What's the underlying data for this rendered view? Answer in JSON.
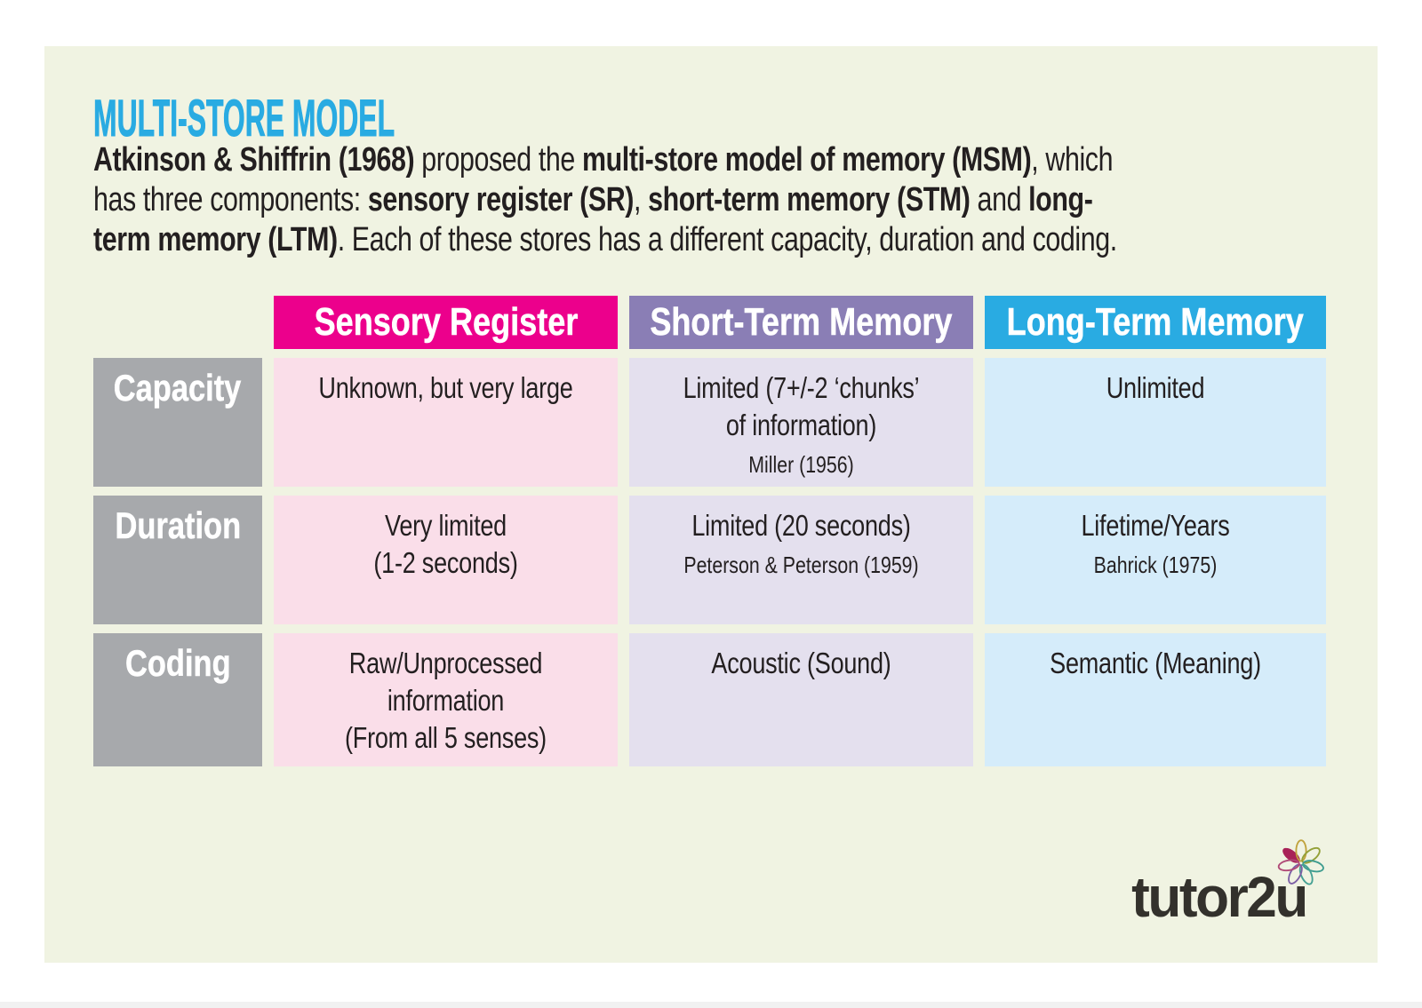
{
  "header": {
    "title": "MULTI-STORE MODEL",
    "title_color": "#29ABE2"
  },
  "intro": {
    "lines": [
      [
        {
          "t": "Atkinson & Shiffrin (1968)",
          "b": true
        },
        {
          "t": " proposed the ",
          "b": false
        },
        {
          "t": "multi-store model of memory (MSM)",
          "b": true
        },
        {
          "t": ", which",
          "b": false
        }
      ],
      [
        {
          "t": "has three components: ",
          "b": false
        },
        {
          "t": "sensory register (SR)",
          "b": true
        },
        {
          "t": ", ",
          "b": false
        },
        {
          "t": "short-term memory (STM)",
          "b": true
        },
        {
          "t": " and ",
          "b": false
        },
        {
          "t": "long-",
          "b": true
        }
      ],
      [
        {
          "t": "term memory (LTM)",
          "b": true
        },
        {
          "t": ". Each of these stores has a different capacity, duration and coding.",
          "b": false
        }
      ]
    ]
  },
  "table": {
    "row_header_color": "#A7A9AC",
    "columns": [
      {
        "label": "Sensory Register",
        "header_color": "#EC008C",
        "cell_color": "#FADEE9"
      },
      {
        "label": "Short-Term Memory",
        "header_color": "#8A7EB5",
        "cell_color": "#E4E0EE"
      },
      {
        "label": "Long-Term Memory",
        "header_color": "#29ABE2",
        "cell_color": "#D5ECFA"
      }
    ],
    "rows": [
      {
        "label": "Capacity",
        "cells": [
          {
            "main": "Unknown, but very large",
            "note": ""
          },
          {
            "main": "Limited (7+/-2 ‘chunks’\nof information)",
            "note": "Miller (1956)"
          },
          {
            "main": "Unlimited",
            "note": ""
          }
        ]
      },
      {
        "label": "Duration",
        "cells": [
          {
            "main": "Very limited\n(1-2 seconds)",
            "note": ""
          },
          {
            "main": "Limited (20 seconds)",
            "note": "Peterson & Peterson (1959)"
          },
          {
            "main": "Lifetime/Years",
            "note": "Bahrick (1975)"
          }
        ]
      },
      {
        "label": "Coding",
        "cells": [
          {
            "main": "Raw/Unprocessed\ninformation\n(From all 5 senses)",
            "note": ""
          },
          {
            "main": "Acoustic (Sound)",
            "note": ""
          },
          {
            "main": "Semantic (Meaning)",
            "note": ""
          }
        ]
      }
    ]
  },
  "footer": {
    "logo_text": "tutor2u",
    "logo_color": "#33312C",
    "flower_petals": [
      {
        "angle": -52,
        "color": "#A82157",
        "filled": true
      },
      {
        "angle": 0,
        "color": "#C0A23C",
        "filled": false
      },
      {
        "angle": 52,
        "color": "#93A037",
        "filled": false
      },
      {
        "angle": 104,
        "color": "#3E9C8F",
        "filled": false
      },
      {
        "angle": 156,
        "color": "#45A093",
        "filled": false
      },
      {
        "angle": 208,
        "color": "#7C5FA5",
        "filled": false
      },
      {
        "angle": 260,
        "color": "#B04A77",
        "filled": false
      }
    ]
  },
  "colors": {
    "page_bg": "#FFFFFF",
    "panel_bg": "#F0F3E2",
    "text": "#231F20",
    "bottom_strip": "#F1F1F1"
  }
}
